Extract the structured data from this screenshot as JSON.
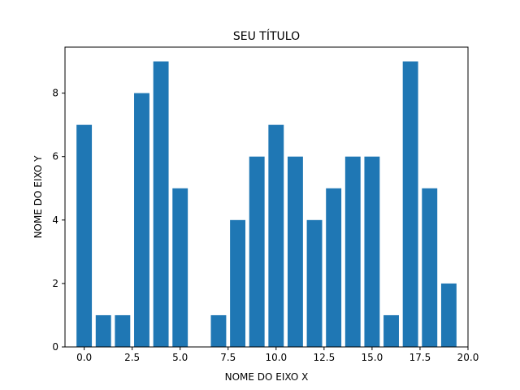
{
  "chart_data": {
    "type": "bar",
    "title": "SEU TÍTULO",
    "xlabel": "NOME DO EIXO X",
    "ylabel": "NOME DO EIXO Y",
    "x": [
      0,
      1,
      2,
      3,
      4,
      5,
      6,
      7,
      8,
      9,
      10,
      11,
      12,
      13,
      14,
      15,
      16,
      17,
      18,
      19
    ],
    "values": [
      7,
      1,
      1,
      8,
      9,
      5,
      0,
      1,
      4,
      6,
      7,
      6,
      4,
      5,
      6,
      6,
      1,
      9,
      5,
      2
    ],
    "xlim": [
      -1,
      20
    ],
    "ylim": [
      0,
      9.45
    ],
    "xticks": [
      0,
      2.5,
      5,
      7.5,
      10,
      12.5,
      15,
      17.5,
      20
    ],
    "xtick_labels": [
      "0.0",
      "2.5",
      "5.0",
      "7.5",
      "10.0",
      "12.5",
      "15.0",
      "17.5",
      "20.0"
    ],
    "yticks": [
      0,
      2,
      4,
      6,
      8
    ],
    "ytick_labels": [
      "0",
      "2",
      "4",
      "6",
      "8"
    ],
    "bar_width": 0.8,
    "bar_color": "#1f77b4",
    "grid": false,
    "legend": "none"
  }
}
